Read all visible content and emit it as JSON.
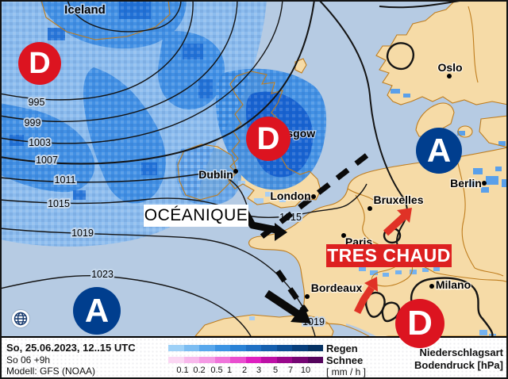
{
  "map": {
    "country_label": "Iceland",
    "cities": [
      {
        "name": "Oslo"
      },
      {
        "name": "Berlin"
      },
      {
        "name": "Dublin"
      },
      {
        "name": "Glasgow"
      },
      {
        "name": "London"
      },
      {
        "name": "Bruxelles"
      },
      {
        "name": "Paris"
      },
      {
        "name": "Bordeaux"
      },
      {
        "name": "Milano"
      }
    ],
    "annotations": {
      "oceanique": "OCÉANIQUE",
      "tres_chaud": "TRES CHAUD"
    },
    "isobar_labels": [
      "995",
      "999",
      "1003",
      "1007",
      "1011",
      "1015",
      "1019",
      "1023",
      "1015",
      "1019"
    ],
    "pressure_centers": [
      {
        "letter": "D",
        "type": "low",
        "location": "north-atlantic"
      },
      {
        "letter": "D",
        "type": "low",
        "location": "scotland"
      },
      {
        "letter": "D",
        "type": "low",
        "location": "mediterranean"
      },
      {
        "letter": "A",
        "type": "high",
        "location": "scandinavia-baltic"
      },
      {
        "letter": "A",
        "type": "high",
        "location": "bay-of-biscay"
      }
    ],
    "colors": {
      "low_red": "#dc1420",
      "high_blue": "#003e8e",
      "sea": "#b6cbe3",
      "land": "#f6dba7",
      "coast": "#bf7d1e",
      "rain_light": "#86baef",
      "rain_dark": "#1f6fd6"
    }
  },
  "footer": {
    "datetime": "So, 25.06.2023, 12..15 UTC",
    "run": "So 06 +9h",
    "model": "Modell: GFS (NOAA)",
    "legend": {
      "rain_label": "Regen",
      "snow_label": "Schnee",
      "unit": "[ mm / h ]",
      "scale": [
        "0.1",
        "0.2",
        "0.5",
        "1",
        "2",
        "3",
        "5",
        "7",
        "10"
      ],
      "rain_colors": [
        "#9ed1f7",
        "#7cbdf2",
        "#58a7ec",
        "#3b93e3",
        "#2a82d6",
        "#1f70c4",
        "#155fae",
        "#0d4f96",
        "#083f7c",
        "#063263"
      ],
      "snow_colors": [
        "#fbd7f3",
        "#f8b9ec",
        "#f49ae4",
        "#ef75da",
        "#e94ecf",
        "#de1fc0",
        "#bd10a6",
        "#99088b",
        "#750673",
        "#54045c"
      ]
    },
    "right_line1": "Niederschlagsart",
    "right_line2": "Bodendruck [hPa]"
  }
}
